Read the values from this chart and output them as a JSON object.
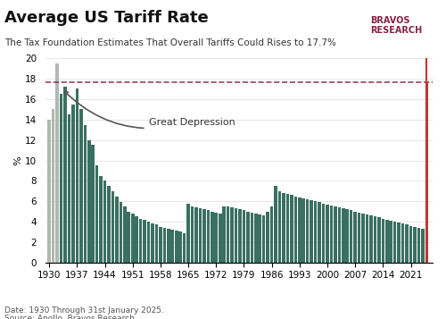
{
  "title": "Average US Tariff Rate",
  "subtitle": "The Tax Foundation Estimates That Overall Tariffs Could Rises to 17.7%",
  "ylabel": "%",
  "footnote1": "Date: 1930 Through 31st January 2025.",
  "footnote2": "Source: Apollo, Bravos Research.",
  "dashed_line_y": 17.7,
  "great_depression_label": "Great Depression",
  "years": [
    1930,
    1931,
    1932,
    1933,
    1934,
    1935,
    1936,
    1937,
    1938,
    1939,
    1940,
    1941,
    1942,
    1943,
    1944,
    1945,
    1946,
    1947,
    1948,
    1949,
    1950,
    1951,
    1952,
    1953,
    1954,
    1955,
    1956,
    1957,
    1958,
    1959,
    1960,
    1961,
    1962,
    1963,
    1964,
    1965,
    1966,
    1967,
    1968,
    1969,
    1970,
    1971,
    1972,
    1973,
    1974,
    1975,
    1976,
    1977,
    1978,
    1979,
    1980,
    1981,
    1982,
    1983,
    1984,
    1985,
    1986,
    1987,
    1988,
    1989,
    1990,
    1991,
    1992,
    1993,
    1994,
    1995,
    1996,
    1997,
    1998,
    1999,
    2000,
    2001,
    2002,
    2003,
    2004,
    2005,
    2006,
    2007,
    2008,
    2009,
    2010,
    2011,
    2012,
    2013,
    2014,
    2015,
    2016,
    2017,
    2018,
    2019,
    2020,
    2021,
    2022,
    2023,
    2024,
    2025
  ],
  "values": [
    14.0,
    15.0,
    19.5,
    16.5,
    17.2,
    14.5,
    15.5,
    17.1,
    15.0,
    13.5,
    12.0,
    11.5,
    9.5,
    8.5,
    8.0,
    7.5,
    7.0,
    6.5,
    5.9,
    5.5,
    5.0,
    4.8,
    4.5,
    4.3,
    4.2,
    4.0,
    3.8,
    3.7,
    3.5,
    3.4,
    3.3,
    3.2,
    3.1,
    3.0,
    2.9,
    5.8,
    5.5,
    5.4,
    5.3,
    5.2,
    5.1,
    5.0,
    4.9,
    4.8,
    5.5,
    5.5,
    5.4,
    5.3,
    5.2,
    5.1,
    5.0,
    4.9,
    4.8,
    4.7,
    4.6,
    5.0,
    5.5,
    7.5,
    7.0,
    6.8,
    6.7,
    6.6,
    6.5,
    6.4,
    6.3,
    6.2,
    6.1,
    6.0,
    5.9,
    5.8,
    5.7,
    5.6,
    5.5,
    5.4,
    5.3,
    5.2,
    5.1,
    5.0,
    4.9,
    4.8,
    4.7,
    4.6,
    4.5,
    4.4,
    4.3,
    4.2,
    4.1,
    4.0,
    3.9,
    3.8,
    3.7,
    3.6,
    3.5,
    3.4,
    3.3,
    17.7
  ],
  "bar_color_normal": "#3a7060",
  "bar_color_last": "#c0392b",
  "bar_color_early": "#b0b8b0",
  "highlight_line_color": "#8B2040",
  "vertical_line_color": "#c0392b",
  "background_color": "#ffffff",
  "xtick_labels": [
    1930,
    1937,
    1944,
    1951,
    1958,
    1965,
    1972,
    1979,
    1986,
    1993,
    2000,
    2007,
    2014,
    2021
  ],
  "ylim": [
    0,
    20
  ],
  "yticks": [
    0,
    2,
    4,
    6,
    8,
    10,
    12,
    14,
    16,
    18,
    20
  ]
}
